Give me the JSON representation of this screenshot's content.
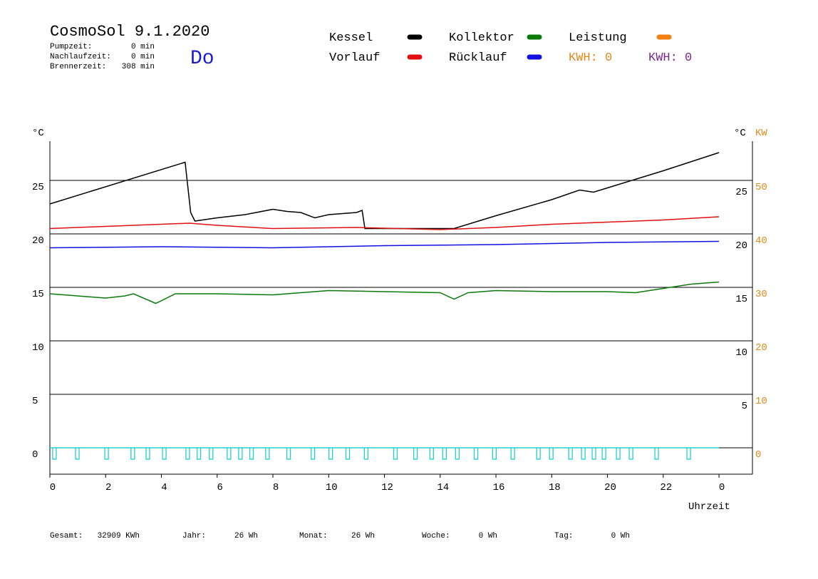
{
  "chart_data": {
    "type": "line",
    "title": "CosmoSol 9.1.2020",
    "info": [
      {
        "label": "Pumpzeit:",
        "value": "0 min"
      },
      {
        "label": "Nachlaufzeit:",
        "value": "0 min"
      },
      {
        "label": "Brennerzeit:",
        "value": "308 min"
      }
    ],
    "day": "Do",
    "energy": [
      {
        "text": "KWH: 0",
        "color": "#e08a1c"
      },
      {
        "text": "KWH: 0",
        "color": "#7a2a8c"
      }
    ],
    "y_unit": "°C",
    "y_right_unit": "°C",
    "y2_unit": "KW",
    "xlabel": "Uhrzeit",
    "xlim": [
      0,
      25.2
    ],
    "xticks": [
      0,
      2,
      4,
      6,
      8,
      10,
      12,
      14,
      16,
      18,
      20,
      22,
      {
        "value": 24,
        "label": "0"
      }
    ],
    "ylim": [
      -2.47,
      28.67
    ],
    "yticks": [
      0,
      5,
      10,
      15,
      20,
      25
    ],
    "y_right_ticks": [
      5,
      10,
      15,
      20,
      25
    ],
    "y2lim": [
      -4.94,
      57.34
    ],
    "y2ticks": [
      0,
      10,
      20,
      30,
      40,
      50
    ],
    "grid": true,
    "series": [
      {
        "name": "Kessel",
        "color": "#000000",
        "x": [
          0,
          4.85,
          5.05,
          5.2,
          6,
          7,
          8,
          8.5,
          9,
          9.5,
          10,
          11,
          11.2,
          11.3,
          12,
          13,
          14,
          14.5,
          16,
          18,
          19,
          19.5,
          20,
          22,
          24
        ],
        "values": [
          22.8,
          26.7,
          22.0,
          21.2,
          21.5,
          21.8,
          22.3,
          22.1,
          22.0,
          21.5,
          21.8,
          22.0,
          22.2,
          20.5,
          20.5,
          20.5,
          20.5,
          20.5,
          21.7,
          23.2,
          24.1,
          23.9,
          24.3,
          25.9,
          27.6
        ]
      },
      {
        "name": "Vorlauf",
        "color": "#e01010",
        "x": [
          0,
          2,
          5,
          6,
          8,
          11,
          14,
          16,
          18,
          20,
          22,
          24
        ],
        "values": [
          20.5,
          20.7,
          21.0,
          20.8,
          20.5,
          20.6,
          20.4,
          20.6,
          20.9,
          21.1,
          21.3,
          21.6
        ]
      },
      {
        "name": "Kollektor",
        "color": "#0a7a0a",
        "x": [
          0,
          1,
          2,
          2.7,
          3,
          3.8,
          4.5,
          6,
          8,
          9,
          10,
          12,
          14,
          14.5,
          15,
          16,
          18,
          20,
          21,
          22,
          23,
          24
        ],
        "values": [
          14.4,
          14.2,
          14.0,
          14.2,
          14.4,
          13.5,
          14.4,
          14.4,
          14.3,
          14.5,
          14.7,
          14.6,
          14.5,
          13.9,
          14.5,
          14.7,
          14.6,
          14.6,
          14.5,
          14.9,
          15.3,
          15.5
        ]
      },
      {
        "name": "Rücklauf",
        "color": "#1010e0",
        "x": [
          0,
          4,
          8,
          12,
          16,
          20,
          24
        ],
        "values": [
          18.7,
          18.8,
          18.7,
          18.9,
          19.0,
          19.2,
          19.3
        ]
      },
      {
        "name": "Leistung",
        "color": "#f08010",
        "axis": "y2",
        "x": [],
        "values": []
      }
    ],
    "pump_color": "#20d0d0",
    "pump_pulses": [
      0.1,
      0.92,
      1.97,
      2.91,
      3.45,
      4.04,
      4.88,
      5.28,
      5.72,
      6.36,
      6.77,
      7.17,
      7.74,
      8.5,
      9.37,
      10.01,
      10.62,
      11.28,
      12.33,
      13.05,
      13.63,
      14.09,
      14.55,
      15.22,
      15.88,
      16.54,
      17.46,
      17.92,
      18.61,
      19.07,
      19.45,
      19.81,
      20.32,
      20.78,
      21.7,
      22.85
    ],
    "footer": [
      {
        "label": "Gesamt:",
        "value": "32909 KWh"
      },
      {
        "label": "Jahr:",
        "value": "26 Wh"
      },
      {
        "label": "Monat:",
        "value": "26 Wh"
      },
      {
        "label": "Woche:",
        "value": "0 Wh"
      },
      {
        "label": "Tag:",
        "value": "0 Wh"
      }
    ]
  }
}
